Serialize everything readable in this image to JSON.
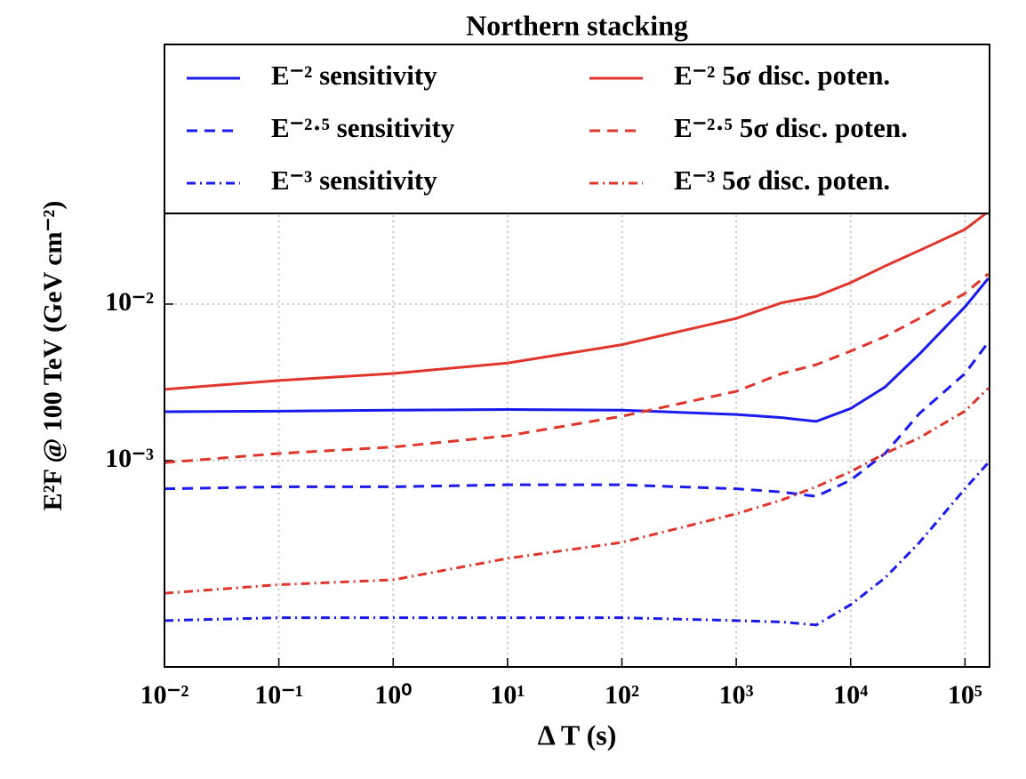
{
  "chart_data": {
    "type": "line",
    "title": "Northern stacking",
    "xlabel": "Δ T (s)",
    "ylabel": "E²F @ 100 TeV (GeV cm⁻²)",
    "xscale": "log",
    "yscale": "log",
    "grid": true,
    "legend": {
      "loc": "upper center",
      "ncol": 2
    },
    "xlim": [
      0.01,
      164000
    ],
    "ylim": [
      4.8e-05,
      0.456
    ],
    "xticks": [
      {
        "value": 0.01,
        "label": "10⁻²"
      },
      {
        "value": 0.1,
        "label": "10⁻¹"
      },
      {
        "value": 1,
        "label": "10⁰"
      },
      {
        "value": 10,
        "label": "10¹"
      },
      {
        "value": 100,
        "label": "10²"
      },
      {
        "value": 1000,
        "label": "10³"
      },
      {
        "value": 10000,
        "label": "10⁴"
      },
      {
        "value": 100000,
        "label": "10⁵"
      }
    ],
    "yticks": [
      {
        "value": 0.001,
        "label": "10⁻³"
      },
      {
        "value": 0.01,
        "label": "10⁻²"
      }
    ],
    "x": [
      0.01,
      0.1,
      1,
      10,
      100,
      1000,
      2500,
      5000,
      10000,
      20000,
      40000,
      100000,
      160000
    ],
    "series": [
      {
        "name": "E⁻² sensitivity",
        "color": "#1a1aee",
        "linestyle": "solid",
        "values": [
          0.00205,
          0.00207,
          0.0021,
          0.00212,
          0.0021,
          0.00197,
          0.00188,
          0.00178,
          0.00215,
          0.00295,
          0.0048,
          0.0096,
          0.0146
        ]
      },
      {
        "name": "E⁻²·⁵ sensitivity",
        "color": "#1a1aee",
        "linestyle": "dashed",
        "values": [
          0.00066,
          0.00068,
          0.00068,
          0.0007,
          0.0007,
          0.00066,
          0.00063,
          0.00059,
          0.00075,
          0.00111,
          0.002,
          0.0036,
          0.0057
        ]
      },
      {
        "name": "E⁻³ sensitivity",
        "color": "#1a1aee",
        "linestyle": "dashdot",
        "values": [
          9.5e-05,
          9.9e-05,
          9.9e-05,
          9.9e-05,
          9.9e-05,
          9.5e-05,
          9.3e-05,
          8.9e-05,
          0.00012,
          0.000178,
          0.0003,
          0.00066,
          0.00097
        ]
      },
      {
        "name": "E⁻² 5σ disc. poten.",
        "color": "#e0352b",
        "linestyle": "solid",
        "values": [
          0.00285,
          0.00325,
          0.0036,
          0.0042,
          0.0055,
          0.0081,
          0.0102,
          0.0112,
          0.0137,
          0.0175,
          0.022,
          0.03,
          0.039
        ]
      },
      {
        "name": "E⁻²·⁵ 5σ disc. poten.",
        "color": "#e0352b",
        "linestyle": "dashed",
        "values": [
          0.00097,
          0.00111,
          0.00122,
          0.00144,
          0.00192,
          0.00277,
          0.0036,
          0.0041,
          0.005,
          0.0062,
          0.0081,
          0.0117,
          0.0156
        ]
      },
      {
        "name": "E⁻³ 5σ disc. poten.",
        "color": "#e0352b",
        "linestyle": "dashdot",
        "values": [
          0.000142,
          0.000161,
          0.000173,
          0.000237,
          0.0003,
          0.000457,
          0.00056,
          0.00068,
          0.00085,
          0.00111,
          0.0014,
          0.00207,
          0.0029
        ]
      }
    ]
  }
}
